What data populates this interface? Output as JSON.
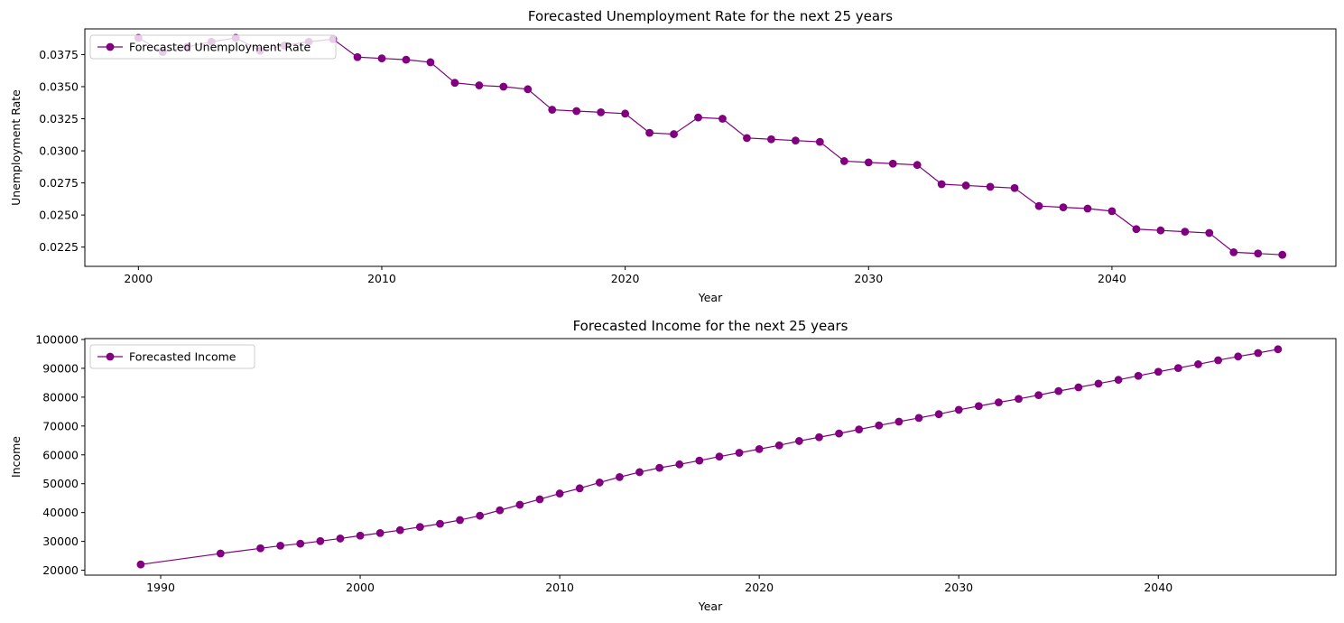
{
  "chart_data": [
    {
      "type": "line",
      "title": "Forecasted Unemployment Rate for the next 25 years",
      "xlabel": "Year",
      "ylabel": "Unemployment Rate",
      "xlim": [
        1997.8,
        2049.2
      ],
      "ylim": [
        0.021,
        0.0395
      ],
      "xticks": [
        2000,
        2010,
        2020,
        2030,
        2040
      ],
      "yticks": [
        0.0225,
        0.025,
        0.0275,
        0.03,
        0.0325,
        0.035,
        0.0375
      ],
      "ytick_decimals": 4,
      "legend": "upper-left",
      "color": "#800080",
      "series": [
        {
          "name": "Forecasted Unemployment Rate",
          "x": [
            2000,
            2001,
            2002,
            2003,
            2004,
            2005,
            2006,
            2007,
            2008,
            2009,
            2010,
            2011,
            2012,
            2013,
            2014,
            2015,
            2016,
            2017,
            2018,
            2019,
            2020,
            2021,
            2022,
            2023,
            2024,
            2025,
            2026,
            2027,
            2028,
            2029,
            2030,
            2031,
            2032,
            2033,
            2034,
            2035,
            2036,
            2037,
            2038,
            2039,
            2040,
            2041,
            2042,
            2043,
            2044,
            2045,
            2046,
            2047
          ],
          "y": [
            0.0388,
            0.0377,
            0.0381,
            0.0385,
            0.0388,
            0.0378,
            0.0382,
            0.0385,
            0.0387,
            0.0373,
            0.0372,
            0.0371,
            0.0369,
            0.0353,
            0.0351,
            0.035,
            0.0348,
            0.0332,
            0.0331,
            0.033,
            0.0329,
            0.0314,
            0.0313,
            0.0326,
            0.0325,
            0.031,
            0.0309,
            0.0308,
            0.0307,
            0.0292,
            0.0291,
            0.029,
            0.0289,
            0.0274,
            0.0273,
            0.0272,
            0.0271,
            0.0257,
            0.0256,
            0.0255,
            0.0253,
            0.0239,
            0.0238,
            0.0237,
            0.0236,
            0.0221,
            0.022,
            0.0219
          ]
        }
      ]
    },
    {
      "type": "line",
      "title": "Forecasted Income for the next 25 years",
      "xlabel": "Year",
      "ylabel": "Income",
      "xlim": [
        1986.2,
        2048.9
      ],
      "ylim": [
        18300,
        100300
      ],
      "xticks": [
        1990,
        2000,
        2010,
        2020,
        2030,
        2040
      ],
      "yticks": [
        20000,
        30000,
        40000,
        50000,
        60000,
        70000,
        80000,
        90000,
        100000
      ],
      "ytick_decimals": 0,
      "legend": "upper-left",
      "color": "#800080",
      "series": [
        {
          "name": "Forecasted Income",
          "x": [
            1989,
            1993,
            1995,
            1996,
            1997,
            1998,
            1999,
            2000,
            2001,
            2002,
            2003,
            2004,
            2005,
            2006,
            2007,
            2008,
            2009,
            2010,
            2011,
            2012,
            2013,
            2014,
            2015,
            2016,
            2017,
            2018,
            2019,
            2020,
            2021,
            2022,
            2023,
            2024,
            2025,
            2026,
            2027,
            2028,
            2029,
            2030,
            2031,
            2032,
            2033,
            2034,
            2035,
            2036,
            2037,
            2038,
            2039,
            2040,
            2041,
            2042,
            2043,
            2044,
            2045,
            2046
          ],
          "y": [
            22000,
            25800,
            27600,
            28500,
            29200,
            30100,
            31000,
            32000,
            32900,
            33900,
            35000,
            36100,
            37400,
            38900,
            40800,
            42700,
            44600,
            46600,
            48400,
            50400,
            52300,
            54000,
            55500,
            56700,
            58000,
            59400,
            60700,
            62000,
            63300,
            64800,
            66100,
            67400,
            68800,
            70200,
            71500,
            72800,
            74100,
            75600,
            76900,
            78200,
            79400,
            80700,
            82100,
            83400,
            84700,
            86000,
            87400,
            88800,
            90100,
            91400,
            92800,
            94100,
            95300,
            96600
          ]
        }
      ]
    }
  ]
}
